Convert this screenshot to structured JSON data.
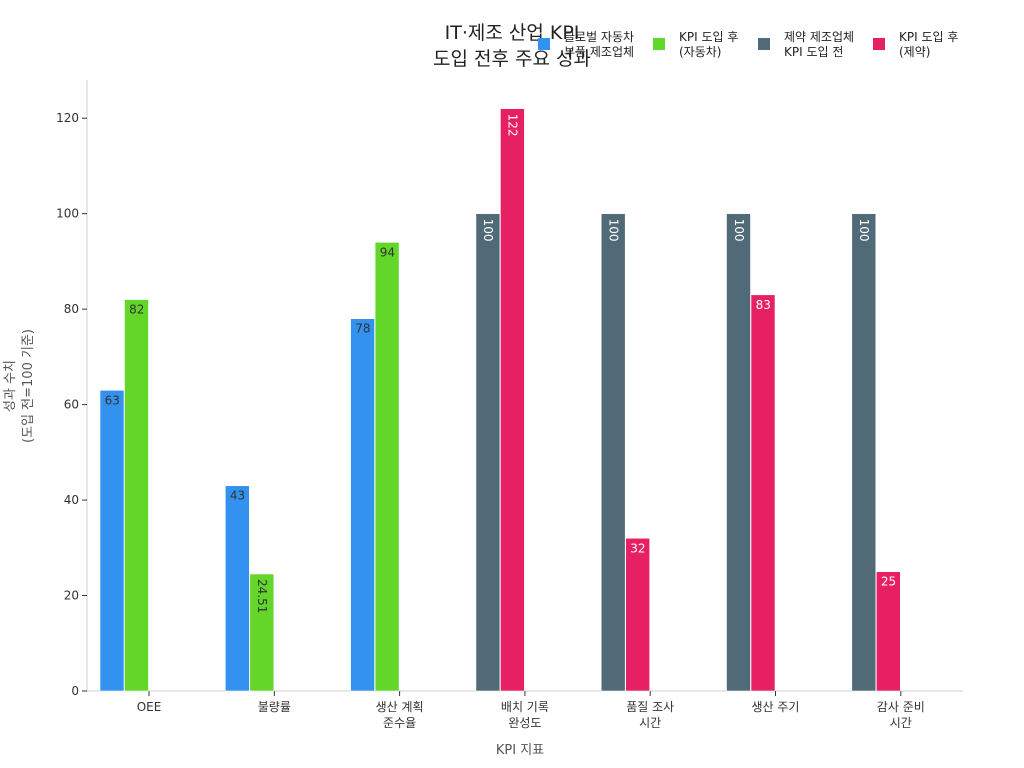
{
  "chart_data": {
    "type": "bar",
    "title": [
      "IT·제조 산업 KPI",
      "도입 전후 주요 성과"
    ],
    "xlabel": "KPI 지표",
    "ylabel": [
      "성과 수치",
      "(도입 전=100 기준)"
    ],
    "ylim": [
      0,
      128
    ],
    "yticks": [
      0,
      20,
      40,
      60,
      80,
      100,
      120
    ],
    "grid": false,
    "legend_position": "top-right",
    "categories": [
      [
        "OEE"
      ],
      [
        "불량률"
      ],
      [
        "생산 계획",
        "준수율"
      ],
      [
        "배치 기록",
        "완성도"
      ],
      [
        "품질 조사",
        "시간"
      ],
      [
        "생산 주기"
      ],
      [
        "감사 준비",
        "시간"
      ]
    ],
    "series": [
      {
        "name": [
          "글로벌 자동차",
          "부품 제조업체"
        ],
        "color": "#3391f0",
        "values": [
          63,
          43,
          78,
          null,
          null,
          null,
          null
        ],
        "labels": [
          "63",
          "43",
          "78",
          null,
          null,
          null,
          null
        ],
        "label_color": "#333333",
        "label_rotated": [
          false,
          false,
          false,
          false,
          false,
          false,
          false
        ]
      },
      {
        "name": [
          "KPI 도입 후",
          "(자동차)"
        ],
        "color": "#63d62a",
        "values": [
          82,
          24.51,
          94,
          null,
          null,
          null,
          null
        ],
        "labels": [
          "82",
          "24.51",
          "94",
          null,
          null,
          null,
          null
        ],
        "label_color": "#333333",
        "label_rotated": [
          false,
          true,
          false,
          false,
          false,
          false,
          false
        ]
      },
      {
        "name": [
          "제약 제조업체",
          "KPI 도입 전"
        ],
        "color": "#516a78",
        "values": [
          null,
          null,
          null,
          100,
          100,
          100,
          100
        ],
        "labels": [
          null,
          null,
          null,
          "100",
          "100",
          "100",
          "100"
        ],
        "label_color": "#ffffff",
        "label_rotated": [
          false,
          false,
          false,
          true,
          true,
          true,
          true
        ]
      },
      {
        "name": [
          "KPI 도입 후",
          "(제약)"
        ],
        "color": "#e71f63",
        "values": [
          null,
          null,
          null,
          122,
          32,
          83,
          25
        ],
        "labels": [
          null,
          null,
          null,
          "122",
          "32",
          "83",
          "25"
        ],
        "label_color": "#ffffff",
        "label_rotated": [
          false,
          false,
          false,
          true,
          false,
          false,
          false
        ]
      }
    ]
  }
}
